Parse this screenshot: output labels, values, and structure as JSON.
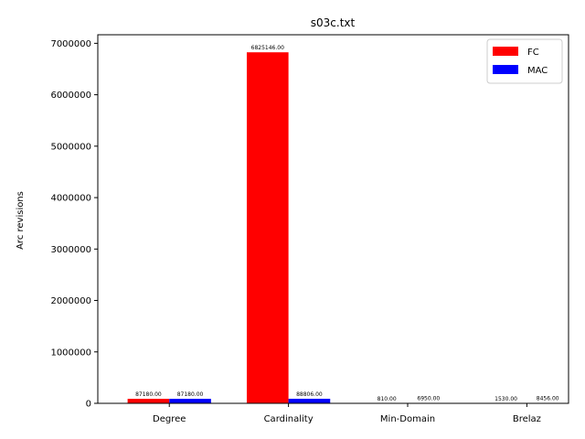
{
  "chart_data": {
    "type": "bar",
    "title": "s03c.txt",
    "xlabel": "",
    "ylabel": "Arc revisions",
    "categories": [
      "Degree",
      "Cardinality",
      "Min-Domain",
      "Brelaz"
    ],
    "series": [
      {
        "name": "FC",
        "color": "#ff0000",
        "values": [
          87180,
          6825146,
          810,
          1530
        ],
        "labels": [
          "87180.00",
          "6825146.00",
          "810.00",
          "1530.00"
        ]
      },
      {
        "name": "MAC",
        "color": "#0000ff",
        "values": [
          87180,
          88806,
          6950,
          8456
        ],
        "labels": [
          "87180.00",
          "88806.00",
          "6950.00",
          "8456.00"
        ]
      }
    ],
    "ylim": [
      0,
      7166403
    ],
    "yticks": [
      0,
      1000000,
      2000000,
      3000000,
      4000000,
      5000000,
      6000000,
      7000000
    ],
    "ytick_labels": [
      "0",
      "1000000",
      "2000000",
      "3000000",
      "4000000",
      "5000000",
      "6000000",
      "7000000"
    ],
    "legend_position": "top-right",
    "grid": false
  }
}
